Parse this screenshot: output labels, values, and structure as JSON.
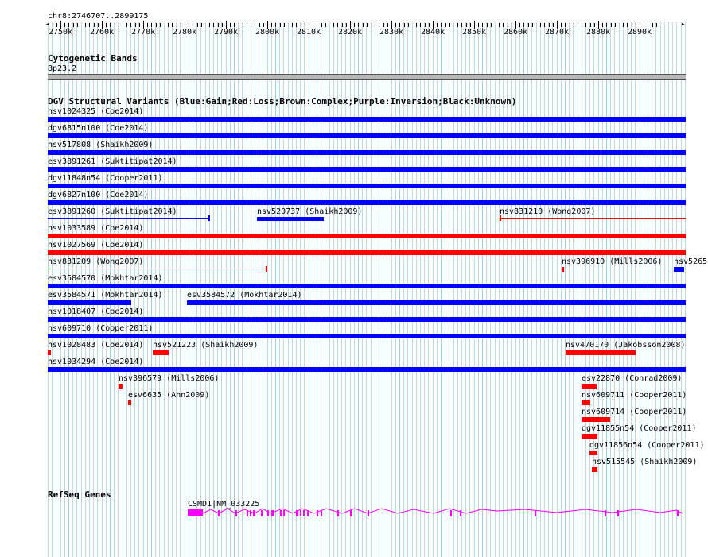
{
  "ruler": {
    "position": "chr8:2746707..2899175",
    "tick_labels": [
      "2750k",
      "2760k",
      "2770k",
      "2780k",
      "2790k",
      "2800k",
      "2810k",
      "2820k",
      "2830k",
      "2840k",
      "2850k",
      "2860k",
      "2870k",
      "2880k",
      "2890k"
    ]
  },
  "cytobands": {
    "title": "Cytogenetic Bands",
    "band": "8p23.2"
  },
  "dgv": {
    "title": "DGV Structural Variants (Blue:Gain;Red:Loss;Brown:Complex;Purple:Inversion;Black:Unknown)",
    "colors": {
      "gain": "#0000ff",
      "loss": "#ff0000"
    },
    "features": [
      {
        "label": "nsv1024325 (Coe2014)",
        "type": "gain"
      },
      {
        "label": "dgv6815n100 (Coe2014)",
        "type": "gain"
      },
      {
        "label": "nsv517808 (Shaikh2009)",
        "type": "gain"
      },
      {
        "label": "esv3891261 (Suktitipat2014)",
        "type": "gain"
      },
      {
        "label": "dgv11848n54 (Cooper2011)",
        "type": "gain"
      },
      {
        "label": "dgv6827n100 (Coe2014)",
        "type": "gain"
      },
      {
        "label": "esv3891260 (Suktitipat2014)",
        "type": "gain"
      },
      {
        "label": "nsv520737 (Shaikh2009)",
        "type": "gain"
      },
      {
        "label": "nsv831210 (Wong2007)",
        "type": "loss"
      },
      {
        "label": "nsv1033589 (Coe2014)",
        "type": "loss"
      },
      {
        "label": "nsv1027569 (Coe2014)",
        "type": "loss"
      },
      {
        "label": "nsv831209 (Wong2007)",
        "type": "loss"
      },
      {
        "label": "nsv396910 (Mills2006)",
        "type": "loss"
      },
      {
        "label": "nsv5265",
        "type": "gain"
      },
      {
        "label": "esv3584570 (Mokhtar2014)",
        "type": "gain"
      },
      {
        "label": "esv3584571 (Mokhtar2014)",
        "type": "gain"
      },
      {
        "label": "esv3584572 (Mokhtar2014)",
        "type": "gain"
      },
      {
        "label": "nsv1018407 (Coe2014)",
        "type": "gain"
      },
      {
        "label": "nsv609710 (Cooper2011)",
        "type": "gain"
      },
      {
        "label": "nsv1028483 (Coe2014)",
        "type": "loss"
      },
      {
        "label": "nsv521223 (Shaikh2009)",
        "type": "loss"
      },
      {
        "label": "nsv470170 (Jakobsson2008)",
        "type": "loss"
      },
      {
        "label": "nsv1034294 (Coe2014)",
        "type": "gain"
      },
      {
        "label": "nsv396579 (Mills2006)",
        "type": "loss"
      },
      {
        "label": "esv22870 (Conrad2009)",
        "type": "loss"
      },
      {
        "label": "esv6635 (Ahn2009)",
        "type": "loss"
      },
      {
        "label": "nsv609711 (Cooper2011)",
        "type": "loss"
      },
      {
        "label": "nsv609714 (Cooper2011)",
        "type": "loss"
      },
      {
        "label": "dgv11855n54 (Cooper2011)",
        "type": "loss"
      },
      {
        "label": "dgv11856n54 (Cooper2011)",
        "type": "loss"
      },
      {
        "label": "nsv515545 (Shaikh2009)",
        "type": "loss"
      }
    ]
  },
  "refseq": {
    "title": "RefSeq Genes",
    "gene_label": "CSMD1|NM_033225",
    "color": "#ff00ff"
  }
}
